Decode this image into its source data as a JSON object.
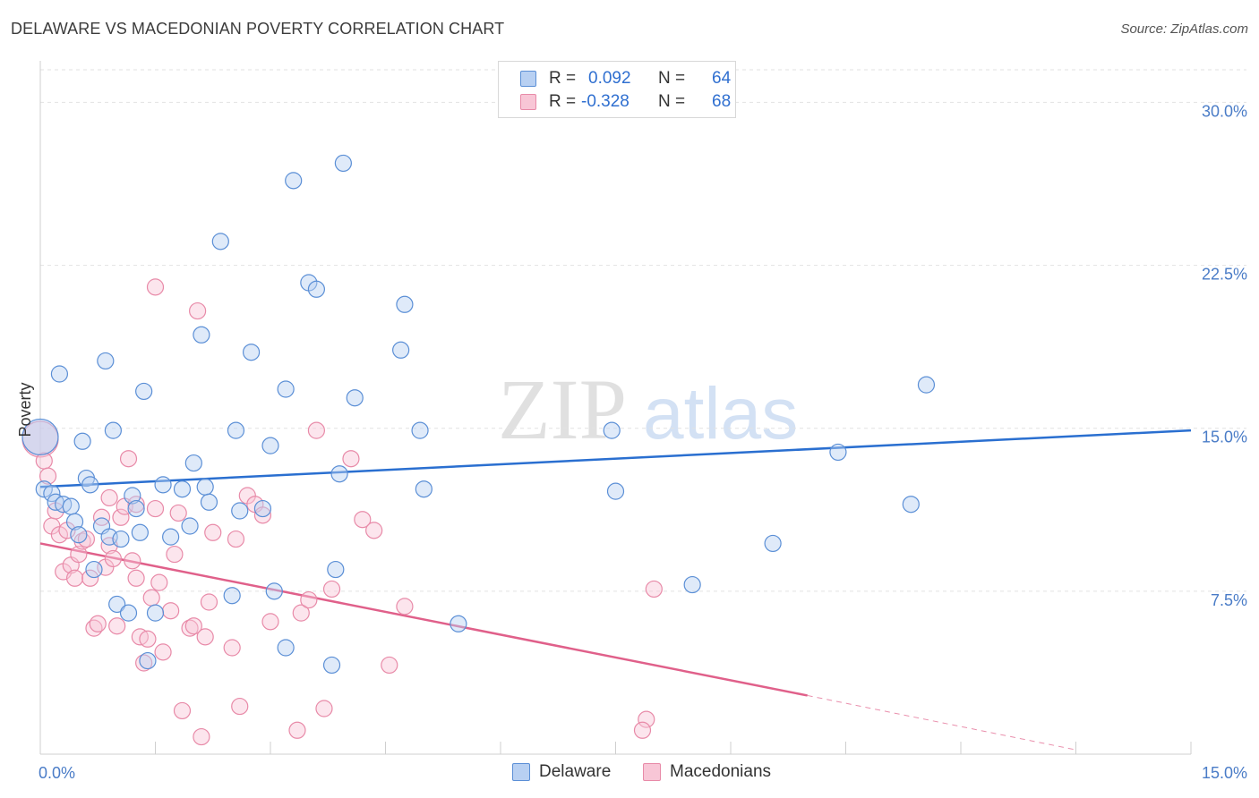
{
  "title": "DELAWARE VS MACEDONIAN POVERTY CORRELATION CHART",
  "source": "Source: ZipAtlas.com",
  "watermark": {
    "zip": "ZIP",
    "atlas": "atlas"
  },
  "legend": {
    "rows": [
      {
        "r_label": "R =",
        "r_value": "0.092",
        "n_label": "N =",
        "n_value": "64"
      },
      {
        "r_label": "R =",
        "r_value": "-0.328",
        "n_label": "N =",
        "n_value": "68"
      }
    ]
  },
  "bottom_legend": [
    "Delaware",
    "Macedonians"
  ],
  "colors": {
    "blue_fill": "#b8d0f2",
    "blue_stroke": "#5b8fd6",
    "blue_line": "#2a6fd0",
    "pink_fill": "#f8c6d6",
    "pink_stroke": "#e88aa8",
    "pink_line": "#e0608a",
    "tick_text": "#4a7cc7",
    "grid": "#e2e2e2"
  },
  "chart_data": {
    "type": "scatter",
    "title": "DELAWARE VS MACEDONIAN POVERTY CORRELATION CHART",
    "xlabel": "",
    "ylabel": "Poverty",
    "xlim": [
      0,
      15
    ],
    "ylim": [
      0,
      31.5
    ],
    "x_ticks": [
      0,
      15
    ],
    "x_tick_labels": [
      "0.0%",
      "15.0%"
    ],
    "y_ticks": [
      7.5,
      15,
      22.5,
      30
    ],
    "y_tick_labels": [
      "7.5%",
      "15.0%",
      "22.5%",
      "30.0%"
    ],
    "grid": true,
    "legend_position": "top-center",
    "series": [
      {
        "name": "Delaware",
        "r": 0.092,
        "n": 64,
        "trend": {
          "x": [
            0,
            15
          ],
          "y": [
            12.3,
            14.9
          ]
        },
        "points": [
          [
            0.0,
            14.6
          ],
          [
            0.05,
            12.2
          ],
          [
            0.15,
            12.0
          ],
          [
            0.2,
            11.6
          ],
          [
            0.25,
            17.5
          ],
          [
            0.3,
            11.5
          ],
          [
            0.4,
            11.4
          ],
          [
            0.45,
            10.7
          ],
          [
            0.5,
            10.1
          ],
          [
            0.55,
            14.4
          ],
          [
            0.6,
            12.7
          ],
          [
            0.65,
            12.4
          ],
          [
            0.7,
            8.5
          ],
          [
            0.8,
            10.5
          ],
          [
            0.85,
            18.1
          ],
          [
            0.9,
            10.0
          ],
          [
            0.95,
            14.9
          ],
          [
            1.05,
            9.9
          ],
          [
            1.0,
            6.9
          ],
          [
            1.15,
            6.5
          ],
          [
            1.2,
            11.9
          ],
          [
            1.25,
            11.3
          ],
          [
            1.3,
            10.2
          ],
          [
            1.35,
            16.7
          ],
          [
            1.4,
            4.3
          ],
          [
            1.5,
            6.5
          ],
          [
            1.6,
            12.4
          ],
          [
            1.7,
            10.0
          ],
          [
            1.85,
            12.2
          ],
          [
            1.95,
            10.5
          ],
          [
            2.0,
            13.4
          ],
          [
            2.1,
            19.3
          ],
          [
            2.15,
            12.3
          ],
          [
            2.2,
            11.6
          ],
          [
            2.35,
            23.6
          ],
          [
            2.5,
            7.3
          ],
          [
            2.6,
            11.2
          ],
          [
            2.75,
            18.5
          ],
          [
            2.9,
            11.3
          ],
          [
            3.0,
            14.2
          ],
          [
            3.05,
            7.5
          ],
          [
            3.2,
            16.8
          ],
          [
            3.2,
            4.9
          ],
          [
            3.3,
            26.4
          ],
          [
            3.5,
            21.7
          ],
          [
            3.6,
            21.4
          ],
          [
            3.8,
            4.1
          ],
          [
            3.85,
            8.5
          ],
          [
            3.9,
            12.9
          ],
          [
            3.95,
            27.2
          ],
          [
            4.1,
            16.4
          ],
          [
            4.7,
            18.6
          ],
          [
            4.75,
            20.7
          ],
          [
            4.95,
            14.9
          ],
          [
            5.0,
            12.2
          ],
          [
            5.45,
            6.0
          ],
          [
            7.45,
            14.9
          ],
          [
            7.5,
            12.1
          ],
          [
            8.5,
            7.8
          ],
          [
            9.55,
            9.7
          ],
          [
            10.4,
            13.9
          ],
          [
            11.35,
            11.5
          ],
          [
            11.55,
            17.0
          ],
          [
            2.55,
            14.9
          ]
        ]
      },
      {
        "name": "Macedonians",
        "r": -0.328,
        "n": 68,
        "trend": {
          "x": [
            0,
            10.0
          ],
          "y": [
            9.7,
            2.7
          ]
        },
        "trend_dashed": {
          "x": [
            10.0,
            13.5
          ],
          "y": [
            2.7,
            0.2
          ]
        },
        "points": [
          [
            0.0,
            14.5
          ],
          [
            0.05,
            13.5
          ],
          [
            0.1,
            12.8
          ],
          [
            0.15,
            10.5
          ],
          [
            0.2,
            11.2
          ],
          [
            0.25,
            10.1
          ],
          [
            0.3,
            8.4
          ],
          [
            0.35,
            10.3
          ],
          [
            0.4,
            8.7
          ],
          [
            0.45,
            8.1
          ],
          [
            0.5,
            9.2
          ],
          [
            0.55,
            9.8
          ],
          [
            0.6,
            9.9
          ],
          [
            0.65,
            8.1
          ],
          [
            0.7,
            5.8
          ],
          [
            0.75,
            6.0
          ],
          [
            0.8,
            10.9
          ],
          [
            0.85,
            8.6
          ],
          [
            0.9,
            9.6
          ],
          [
            0.95,
            9.0
          ],
          [
            1.0,
            5.9
          ],
          [
            1.05,
            10.9
          ],
          [
            1.1,
            11.4
          ],
          [
            1.15,
            13.6
          ],
          [
            1.2,
            8.9
          ],
          [
            1.25,
            8.1
          ],
          [
            1.3,
            5.4
          ],
          [
            1.35,
            4.2
          ],
          [
            1.4,
            5.3
          ],
          [
            1.45,
            7.2
          ],
          [
            1.5,
            21.5
          ],
          [
            1.5,
            11.3
          ],
          [
            1.55,
            7.9
          ],
          [
            1.6,
            4.7
          ],
          [
            1.7,
            6.6
          ],
          [
            1.75,
            9.2
          ],
          [
            1.8,
            11.1
          ],
          [
            1.85,
            2.0
          ],
          [
            1.95,
            5.8
          ],
          [
            2.0,
            5.9
          ],
          [
            2.05,
            20.4
          ],
          [
            2.1,
            0.8
          ],
          [
            2.15,
            5.4
          ],
          [
            2.2,
            7.0
          ],
          [
            2.25,
            10.2
          ],
          [
            2.5,
            4.9
          ],
          [
            2.55,
            9.9
          ],
          [
            2.6,
            2.2
          ],
          [
            2.7,
            11.9
          ],
          [
            2.8,
            11.5
          ],
          [
            2.9,
            11.0
          ],
          [
            3.0,
            6.1
          ],
          [
            3.35,
            1.1
          ],
          [
            3.4,
            6.5
          ],
          [
            3.5,
            7.1
          ],
          [
            3.6,
            14.9
          ],
          [
            3.7,
            2.1
          ],
          [
            3.8,
            7.6
          ],
          [
            4.05,
            13.6
          ],
          [
            4.2,
            10.8
          ],
          [
            4.35,
            10.3
          ],
          [
            4.55,
            4.1
          ],
          [
            4.75,
            6.8
          ],
          [
            8.0,
            7.6
          ],
          [
            7.9,
            1.6
          ],
          [
            7.85,
            1.1
          ],
          [
            1.25,
            11.5
          ],
          [
            0.9,
            11.8
          ]
        ]
      }
    ]
  }
}
